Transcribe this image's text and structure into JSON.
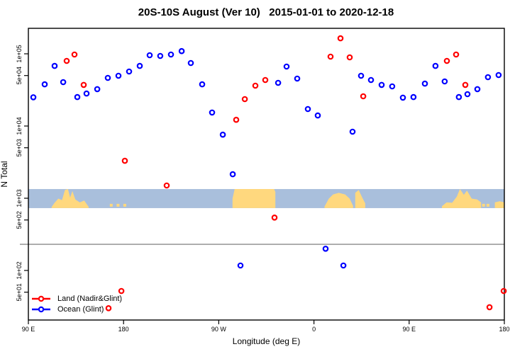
{
  "chart_data": {
    "type": "scatter",
    "title": "20S-10S August (Ver 10)   2015-01-01 to 2020-12-18",
    "y_axis": {
      "label": "N Total",
      "scale": "log",
      "range": [
        20,
        225000
      ],
      "ticks": [
        {
          "label": "1e+05",
          "value": 100000
        },
        {
          "label": "5e+04",
          "value": 50000
        },
        {
          "label": "1e+04",
          "value": 10000
        },
        {
          "label": "5e+03",
          "value": 5000
        },
        {
          "label": "1e+03",
          "value": 1000
        },
        {
          "label": "5e+02",
          "value": 500
        },
        {
          "label": "1e+02",
          "value": 100
        },
        {
          "label": "5e+01",
          "value": 50
        }
      ]
    },
    "x_axis": {
      "label": "Longitude (deg E)",
      "range_deg": [
        0,
        450
      ],
      "ticks": [
        {
          "label": "90 E",
          "t": 0
        },
        {
          "label": "180",
          "t": 90
        },
        {
          "label": "90 W",
          "t": 180
        },
        {
          "label": "0",
          "t": 270
        },
        {
          "label": "90 E",
          "t": 360
        },
        {
          "label": "180",
          "t": 450
        }
      ]
    },
    "reference_line": {
      "n": 230,
      "color": "#8a8a8a"
    },
    "map_band": {
      "ocean_color": "#A9BFDC",
      "land_color": "#FFD87E",
      "n_top": 1340,
      "n_bottom": 730,
      "patches": [
        {
          "t0": 22,
          "t1": 57,
          "shape": "profile",
          "profile": [
            [
              0,
              0.06
            ],
            [
              0.08,
              0.28
            ],
            [
              0.18,
              0.5
            ],
            [
              0.28,
              0.42
            ],
            [
              0.36,
              0.95
            ],
            [
              0.44,
              1.0
            ],
            [
              0.5,
              0.55
            ],
            [
              0.56,
              0.9
            ],
            [
              0.64,
              0.45
            ],
            [
              0.76,
              0.3
            ],
            [
              0.88,
              0.4
            ],
            [
              1,
              0.06
            ]
          ]
        },
        {
          "t0": 77,
          "t1": 93,
          "shape": "specks",
          "profile": [
            [
              0,
              0
            ],
            [
              0.4,
              0
            ],
            [
              0.8,
              0
            ]
          ]
        },
        {
          "t0": 193,
          "t1": 233.5,
          "shape": "profile",
          "profile": [
            [
              0,
              0.5
            ],
            [
              0.05,
              1
            ],
            [
              0.97,
              1
            ],
            [
              1,
              0.85
            ]
          ]
        },
        {
          "t0": 280,
          "t1": 307,
          "shape": "profile",
          "profile": [
            [
              0,
              0.08
            ],
            [
              0.15,
              0.5
            ],
            [
              0.3,
              0.72
            ],
            [
              0.5,
              0.8
            ],
            [
              0.72,
              0.72
            ],
            [
              0.88,
              0.5
            ],
            [
              1,
              0.12
            ]
          ]
        },
        {
          "t0": 309,
          "t1": 318.5,
          "shape": "profile",
          "profile": [
            [
              0,
              0.8
            ],
            [
              0.35,
              0.95
            ],
            [
              0.7,
              0.55
            ],
            [
              1,
              0.25
            ]
          ]
        },
        {
          "t0": 391,
          "t1": 428,
          "shape": "profile",
          "profile": [
            [
              0,
              0.1
            ],
            [
              0.12,
              0.3
            ],
            [
              0.26,
              0.28
            ],
            [
              0.38,
              0.6
            ],
            [
              0.46,
              1.0
            ],
            [
              0.56,
              0.7
            ],
            [
              0.64,
              0.92
            ],
            [
              0.76,
              0.5
            ],
            [
              0.9,
              0.45
            ],
            [
              1,
              0.3
            ]
          ]
        },
        {
          "t0": 429,
          "t1": 436,
          "shape": "specks",
          "profile": [
            [
              0,
              0
            ],
            [
              0.6,
              0
            ]
          ]
        },
        {
          "t0": 441,
          "t1": 450,
          "shape": "profile",
          "profile": [
            [
              0,
              0.3
            ],
            [
              0.5,
              0.36
            ],
            [
              1,
              0.3
            ]
          ]
        }
      ]
    },
    "series": [
      {
        "name": "Land (Nadir&Glint)",
        "color": "#FF0000",
        "points": [
          {
            "t": 36.2,
            "n": 79800
          },
          {
            "t": 43.6,
            "n": 97800
          },
          {
            "t": 52.3,
            "n": 37100
          },
          {
            "t": 75.8,
            "n": 30
          },
          {
            "t": 87.9,
            "n": 52
          },
          {
            "t": 91.2,
            "n": 3300
          },
          {
            "t": 130.8,
            "n": 1500
          },
          {
            "t": 196.5,
            "n": 12200
          },
          {
            "t": 204.6,
            "n": 23600
          },
          {
            "t": 214.6,
            "n": 36200
          },
          {
            "t": 224.0,
            "n": 43400
          },
          {
            "t": 232.7,
            "n": 540
          },
          {
            "t": 285.7,
            "n": 91400
          },
          {
            "t": 295.1,
            "n": 164000
          },
          {
            "t": 303.8,
            "n": 89300
          },
          {
            "t": 316.6,
            "n": 25800
          },
          {
            "t": 395.7,
            "n": 79800
          },
          {
            "t": 404.4,
            "n": 97800
          },
          {
            "t": 413.1,
            "n": 37100
          },
          {
            "t": 436.0,
            "n": 31
          },
          {
            "t": 449.4,
            "n": 52
          }
        ]
      },
      {
        "name": "Ocean (Glint)",
        "color": "#0000FF",
        "points": [
          {
            "t": 4.7,
            "n": 25000
          },
          {
            "t": 15.4,
            "n": 37800
          },
          {
            "t": 24.8,
            "n": 68000
          },
          {
            "t": 32.9,
            "n": 40500
          },
          {
            "t": 46.3,
            "n": 25200
          },
          {
            "t": 55.0,
            "n": 28200
          },
          {
            "t": 65.1,
            "n": 32400
          },
          {
            "t": 75.1,
            "n": 46400
          },
          {
            "t": 85.2,
            "n": 49700
          },
          {
            "t": 95.2,
            "n": 56900
          },
          {
            "t": 105.3,
            "n": 68000
          },
          {
            "t": 114.7,
            "n": 95600
          },
          {
            "t": 124.7,
            "n": 93500
          },
          {
            "t": 134.8,
            "n": 97800
          },
          {
            "t": 144.9,
            "n": 109000
          },
          {
            "t": 153.6,
            "n": 74600
          },
          {
            "t": 164.3,
            "n": 37800
          },
          {
            "t": 173.7,
            "n": 15400
          },
          {
            "t": 183.8,
            "n": 7600
          },
          {
            "t": 193.2,
            "n": 2150
          },
          {
            "t": 200.5,
            "n": 117
          },
          {
            "t": 236.1,
            "n": 39600
          },
          {
            "t": 244.1,
            "n": 66600
          },
          {
            "t": 254.2,
            "n": 45400
          },
          {
            "t": 264.2,
            "n": 17200
          },
          {
            "t": 273.6,
            "n": 14000
          },
          {
            "t": 281.0,
            "n": 200
          },
          {
            "t": 297.8,
            "n": 117
          },
          {
            "t": 306.5,
            "n": 8350
          },
          {
            "t": 314.5,
            "n": 49700
          },
          {
            "t": 323.9,
            "n": 43400
          },
          {
            "t": 334.0,
            "n": 37100
          },
          {
            "t": 344.0,
            "n": 35400
          },
          {
            "t": 354.1,
            "n": 24700
          },
          {
            "t": 364.1,
            "n": 25200
          },
          {
            "t": 374.9,
            "n": 38700
          },
          {
            "t": 384.9,
            "n": 68000
          },
          {
            "t": 393.6,
            "n": 41500
          },
          {
            "t": 407.0,
            "n": 25200
          },
          {
            "t": 415.1,
            "n": 27600
          },
          {
            "t": 424.5,
            "n": 32400
          },
          {
            "t": 434.5,
            "n": 47500
          },
          {
            "t": 444.6,
            "n": 50800
          }
        ]
      }
    ]
  }
}
